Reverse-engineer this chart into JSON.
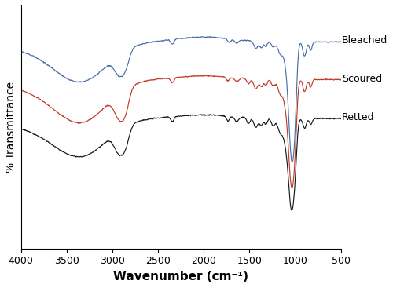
{
  "xlabel": "Wavenumber (cm⁻¹)",
  "ylabel": "% Transmittance",
  "xlim": [
    4000,
    500
  ],
  "x_ticks": [
    4000,
    3500,
    3000,
    2500,
    2000,
    1500,
    1000,
    500
  ],
  "colors": {
    "bleached": "#4a6fa8",
    "scoured": "#c0392b",
    "retted": "#1a1a1a"
  },
  "labels": {
    "bleached": "Bleached",
    "scoured": "Scoured",
    "retted": "Retted"
  },
  "linewidth": 0.85,
  "figsize": [
    5.0,
    3.67
  ],
  "dpi": 100
}
